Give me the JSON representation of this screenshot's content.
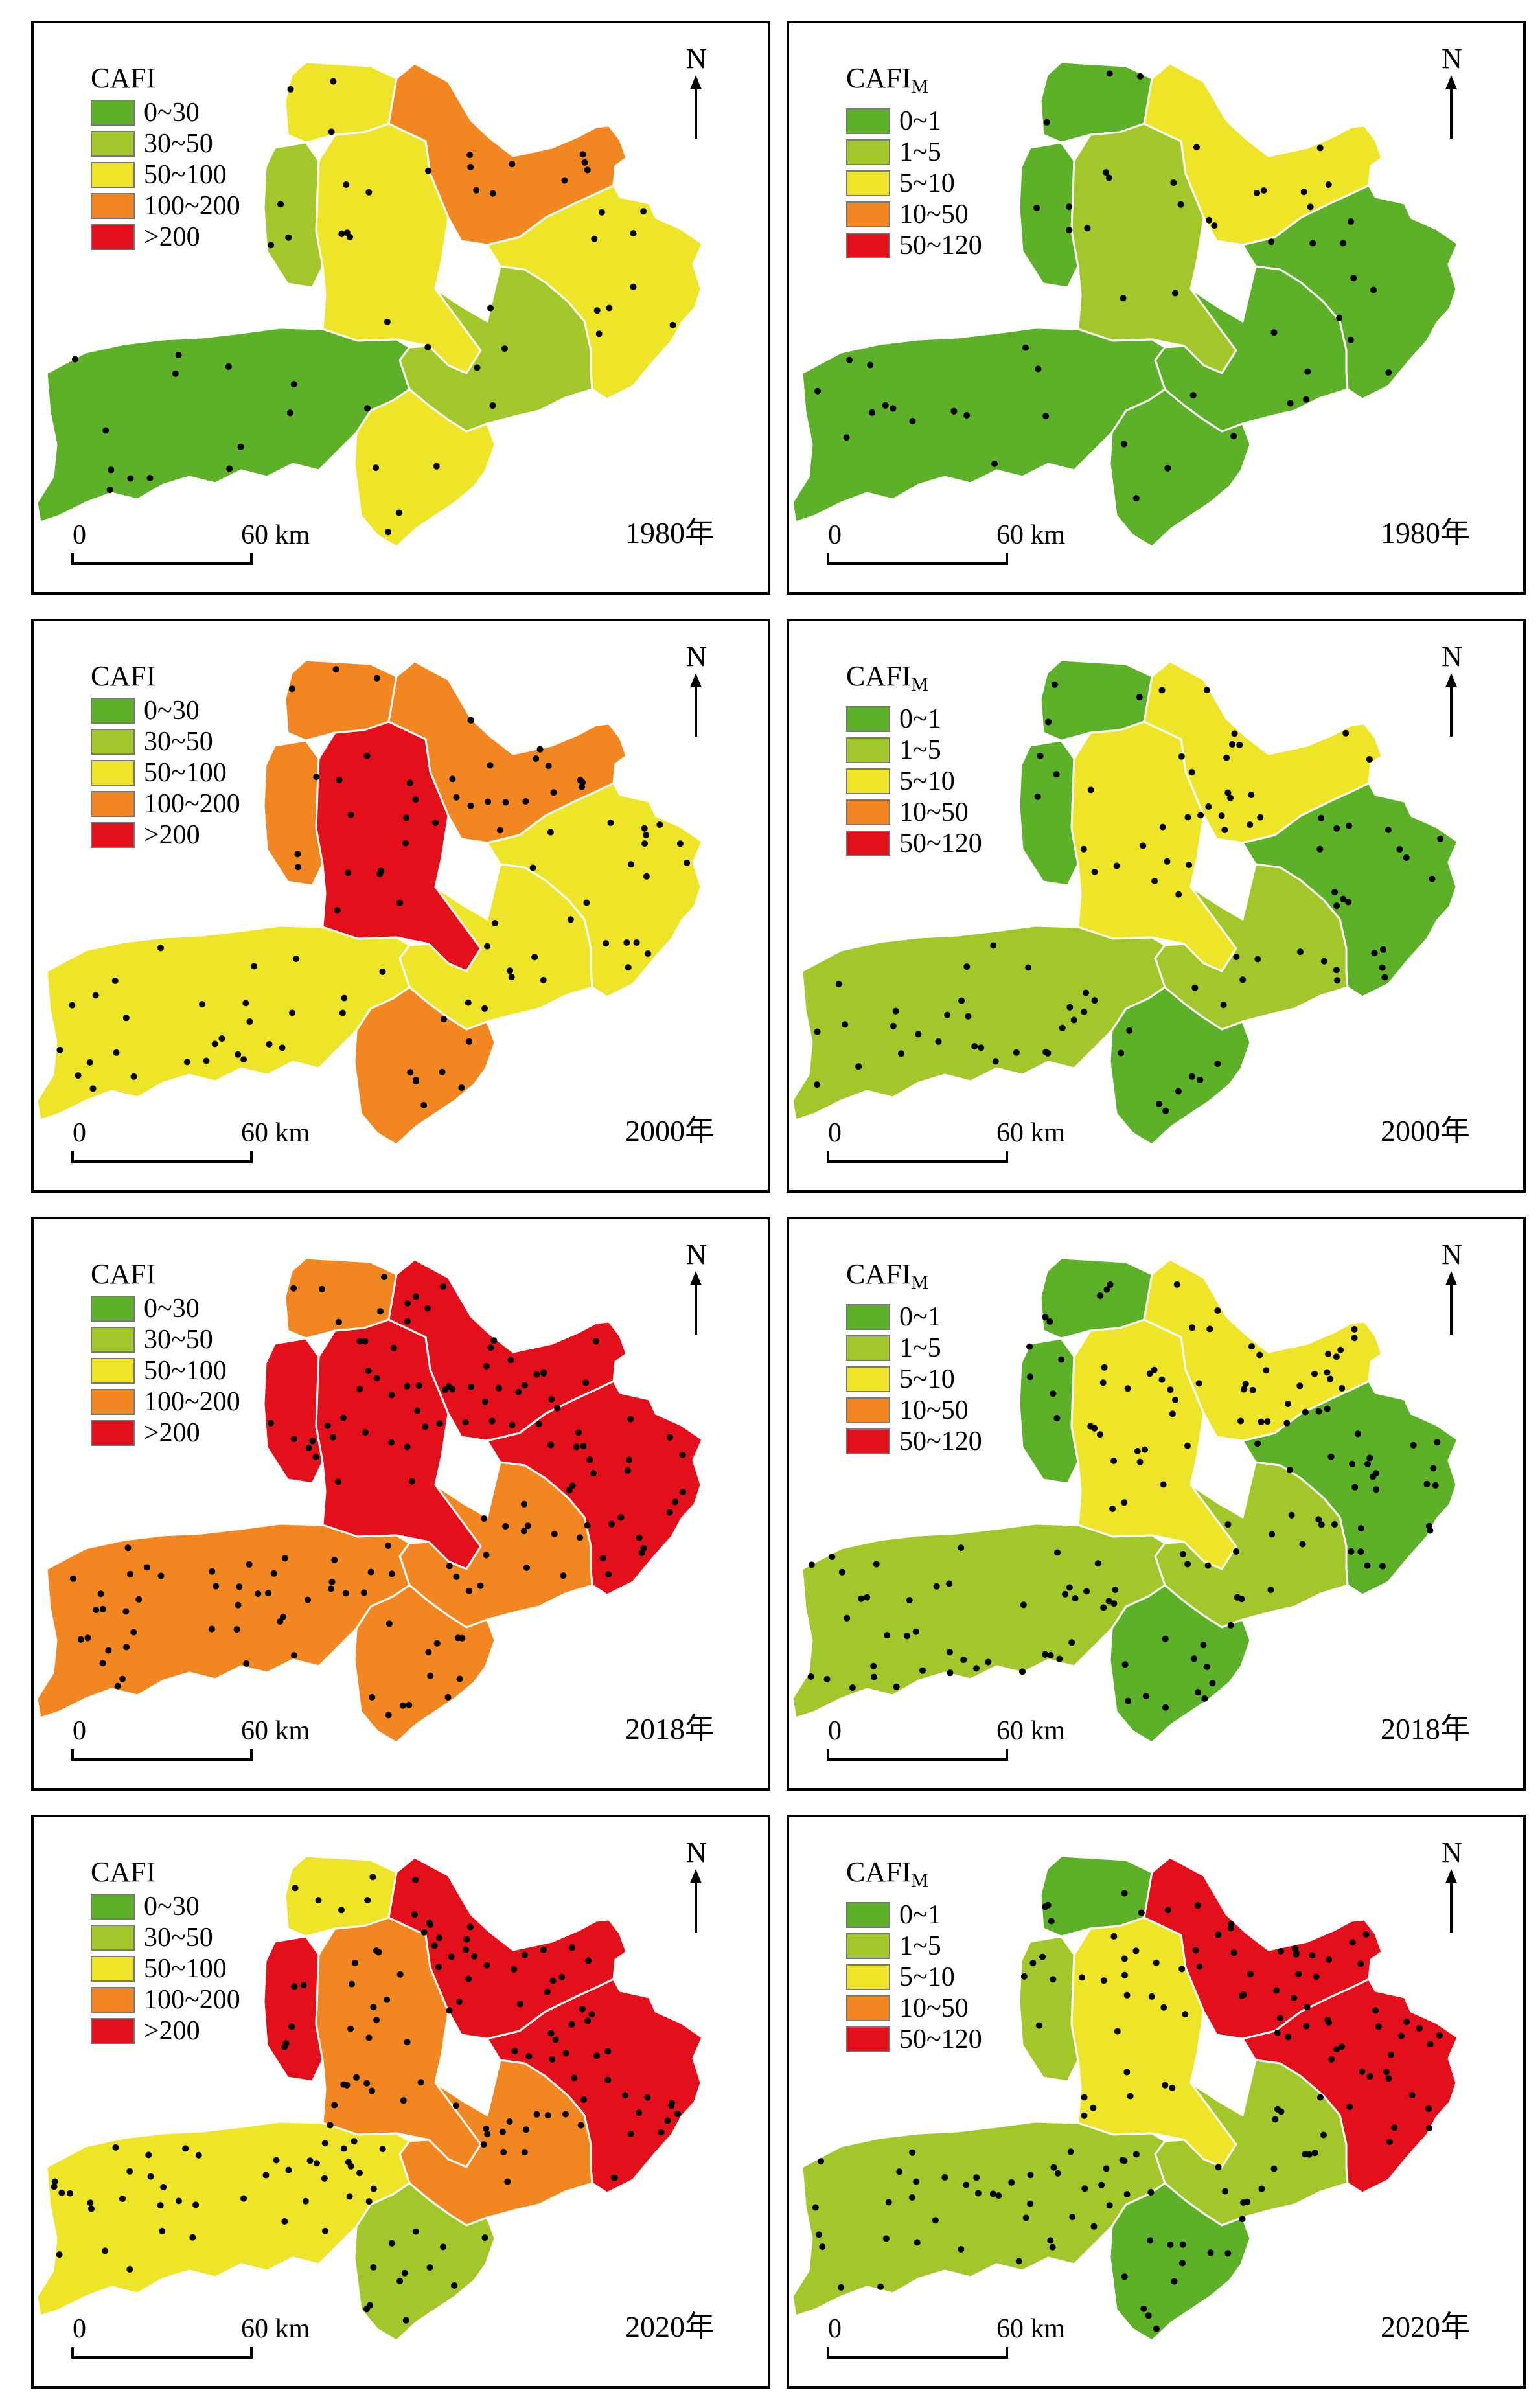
{
  "colors": {
    "class1": "#5DB129",
    "class2": "#A1C72A",
    "class3": "#EEE529",
    "class4": "#F28722",
    "class5": "#E30F1A",
    "point": "#000000",
    "boundary": "#ffffff"
  },
  "legends": {
    "cafi": {
      "title": "CAFI",
      "items": [
        {
          "label": "0~30",
          "color": "#5DB129"
        },
        {
          "label": "30~50",
          "color": "#A1C72A"
        },
        {
          "label": "50~100",
          "color": "#EEE529"
        },
        {
          "label": "100~200",
          "color": "#F28722"
        },
        {
          "label": ">200",
          "color": "#E30F1A"
        }
      ]
    },
    "cafi_m": {
      "title": "CAFI",
      "title_subscript": "M",
      "items": [
        {
          "label": "0~1",
          "color": "#5DB129"
        },
        {
          "label": "1~5",
          "color": "#A1C72A"
        },
        {
          "label": "5~10",
          "color": "#EEE529"
        },
        {
          "label": "10~50",
          "color": "#F28722"
        },
        {
          "label": "50~120",
          "color": "#E30F1A"
        }
      ]
    }
  },
  "north_label": "N",
  "scale": {
    "zero": "0",
    "max": "60 km"
  },
  "region_order": [
    "north",
    "northwest",
    "central",
    "northeast",
    "east",
    "southcentral",
    "west",
    "south"
  ],
  "panels": [
    {
      "year": "1980年",
      "legend": "cafi",
      "classes": [
        3,
        2,
        3,
        4,
        3,
        2,
        1,
        3
      ],
      "point_density": 1
    },
    {
      "year": "1980年",
      "legend": "cafi_m",
      "classes": [
        1,
        1,
        2,
        3,
        1,
        1,
        1,
        1
      ],
      "point_density": 1
    },
    {
      "year": "2000年",
      "legend": "cafi",
      "classes": [
        4,
        4,
        5,
        4,
        3,
        3,
        3,
        4
      ],
      "point_density": 2
    },
    {
      "year": "2000年",
      "legend": "cafi_m",
      "classes": [
        1,
        1,
        3,
        3,
        1,
        2,
        2,
        1
      ],
      "point_density": 2
    },
    {
      "year": "2018年",
      "legend": "cafi",
      "classes": [
        4,
        5,
        5,
        5,
        5,
        4,
        4,
        4
      ],
      "point_density": 3
    },
    {
      "year": "2018年",
      "legend": "cafi_m",
      "classes": [
        1,
        1,
        3,
        3,
        1,
        2,
        2,
        1
      ],
      "point_density": 3
    },
    {
      "year": "2020年",
      "legend": "cafi",
      "classes": [
        3,
        5,
        4,
        5,
        5,
        4,
        3,
        2
      ],
      "point_density": 3
    },
    {
      "year": "2020年",
      "legend": "cafi_m",
      "classes": [
        1,
        2,
        3,
        5,
        5,
        2,
        2,
        1
      ],
      "point_density": 3
    }
  ]
}
